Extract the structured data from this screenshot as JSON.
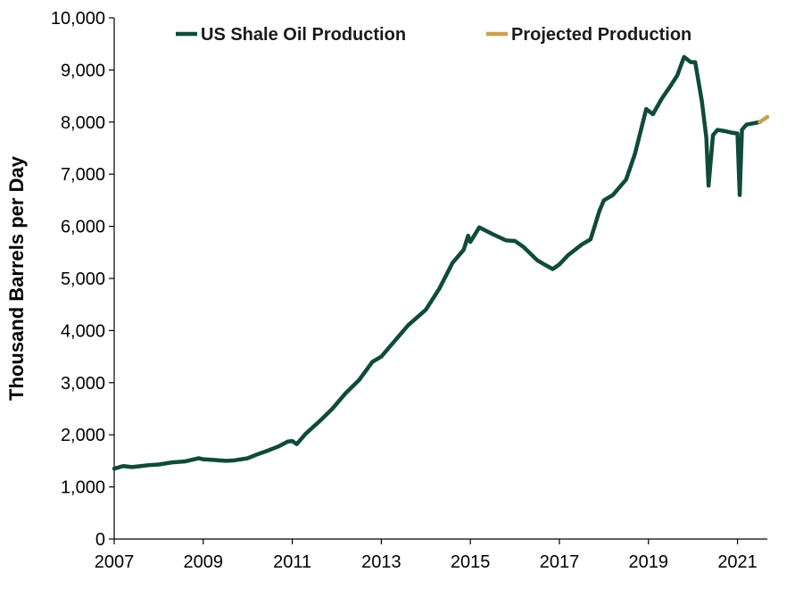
{
  "chart_data": {
    "type": "line",
    "ylabel": "Thousand Barrels per Day",
    "xlabel": "",
    "xlim": [
      2007,
      2021.67
    ],
    "ylim": [
      0,
      10000
    ],
    "x_ticks": [
      "2007",
      "2009",
      "2011",
      "2013",
      "2015",
      "2017",
      "2019",
      "2021"
    ],
    "y_ticks": [
      "0",
      "1,000",
      "2,000",
      "3,000",
      "4,000",
      "5,000",
      "6,000",
      "7,000",
      "8,000",
      "9,000",
      "10,000"
    ],
    "grid": false,
    "legend_position": "top",
    "colors": {
      "actual": "#0f4a3a",
      "projected": "#c9a24e"
    },
    "series": [
      {
        "name": "US Shale Oil Production",
        "x": [
          2007.0,
          2007.2,
          2007.4,
          2007.6,
          2007.8,
          2008.0,
          2008.3,
          2008.6,
          2008.9,
          2009.0,
          2009.2,
          2009.5,
          2009.7,
          2010.0,
          2010.2,
          2010.4,
          2010.7,
          2010.9,
          2011.0,
          2011.1,
          2011.3,
          2011.6,
          2011.9,
          2012.2,
          2012.5,
          2012.8,
          2013.0,
          2013.3,
          2013.6,
          2014.0,
          2014.3,
          2014.6,
          2014.85,
          2014.95,
          2015.0,
          2015.2,
          2015.5,
          2015.8,
          2016.0,
          2016.2,
          2016.5,
          2016.7,
          2016.85,
          2017.0,
          2017.2,
          2017.5,
          2017.7,
          2017.9,
          2018.0,
          2018.2,
          2018.5,
          2018.7,
          2018.95,
          2019.1,
          2019.3,
          2019.5,
          2019.65,
          2019.8,
          2019.95,
          2020.05,
          2020.2,
          2020.3,
          2020.35,
          2020.45,
          2020.55,
          2020.7,
          2020.85,
          2021.0,
          2021.05,
          2021.1,
          2021.2,
          2021.5
        ],
        "y": [
          1350,
          1400,
          1380,
          1400,
          1420,
          1430,
          1470,
          1490,
          1550,
          1530,
          1520,
          1500,
          1510,
          1550,
          1620,
          1680,
          1780,
          1870,
          1880,
          1820,
          2020,
          2250,
          2500,
          2800,
          3050,
          3400,
          3500,
          3800,
          4100,
          4400,
          4800,
          5300,
          5550,
          5820,
          5700,
          5980,
          5850,
          5730,
          5720,
          5600,
          5350,
          5250,
          5180,
          5270,
          5450,
          5650,
          5750,
          6300,
          6500,
          6600,
          6900,
          7400,
          8250,
          8150,
          8450,
          8700,
          8900,
          9250,
          9150,
          9150,
          8400,
          7700,
          6780,
          7750,
          7850,
          7830,
          7800,
          7780,
          6600,
          7850,
          7950,
          8000
        ]
      },
      {
        "name": "Projected Production",
        "x": [
          2021.5,
          2021.67
        ],
        "y": [
          8000,
          8100
        ]
      }
    ]
  }
}
